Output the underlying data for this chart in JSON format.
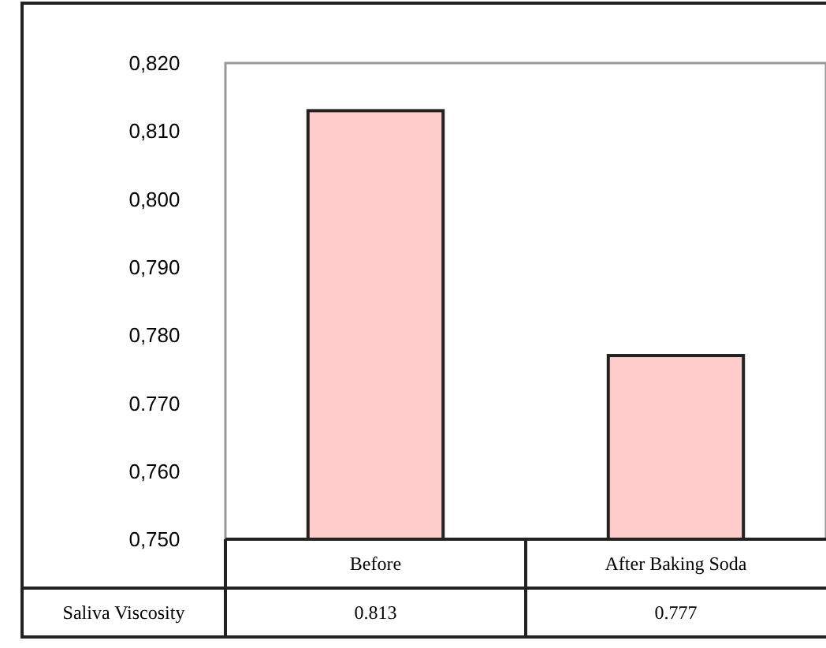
{
  "chart_data": {
    "type": "bar",
    "categories": [
      "Before",
      "After Baking Soda"
    ],
    "series": [
      {
        "name": "Saliva Viscosity",
        "color": "#ffcccc",
        "values": [
          0.813,
          0.777
        ]
      }
    ],
    "ylim": [
      0.75,
      0.82
    ],
    "yticks": [
      {
        "value": 0.75,
        "label": "0,750"
      },
      {
        "value": 0.76,
        "label": "0,760"
      },
      {
        "value": 0.77,
        "label": "0.770"
      },
      {
        "value": 0.78,
        "label": "0,780"
      },
      {
        "value": 0.79,
        "label": "0,790"
      },
      {
        "value": 0.8,
        "label": "0,800"
      },
      {
        "value": 0.81,
        "label": "0,810"
      },
      {
        "value": 0.82,
        "label": "0,820"
      }
    ],
    "data_labels": true,
    "grid": false,
    "legend": false
  }
}
